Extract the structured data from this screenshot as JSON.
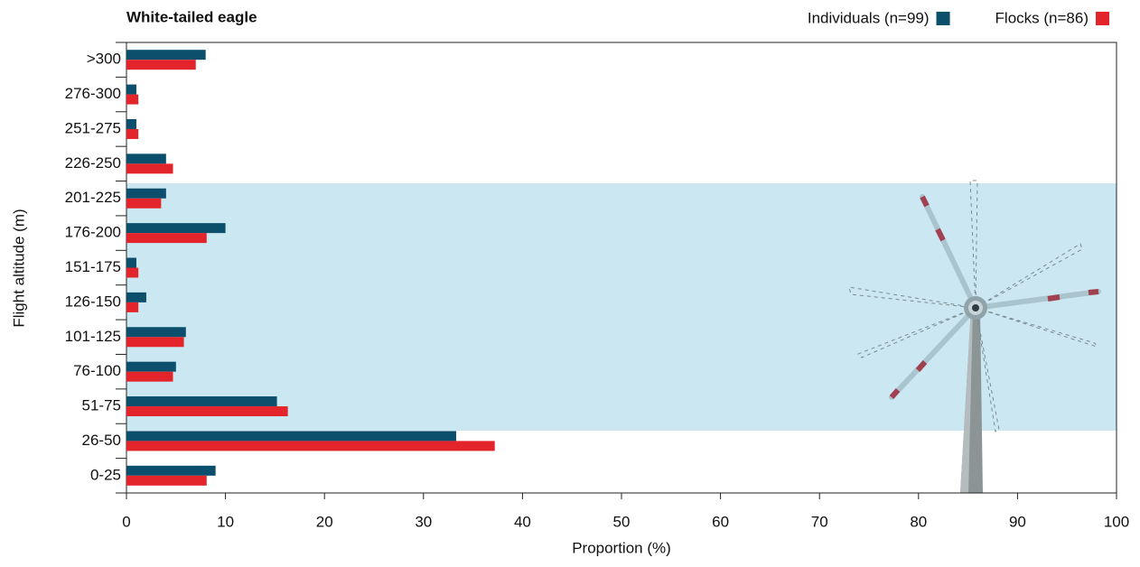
{
  "chart_data": {
    "type": "hbar",
    "title": "White-tailed eagle",
    "xlabel": "Proportion (%)",
    "ylabel": "Flight altitude (m)",
    "categories": [
      "0-25",
      "26-50",
      "51-75",
      "76-100",
      "101-125",
      "126-150",
      "151-175",
      "176-200",
      "201-225",
      "226-250",
      "251-275",
      "276-300",
      ">300"
    ],
    "series": [
      {
        "name": "Individuals (n=99)",
        "color": "#0b4f6c",
        "values": [
          9.0,
          33.3,
          15.2,
          5.0,
          6.0,
          2.0,
          1.0,
          10.0,
          4.0,
          4.0,
          1.0,
          1.0,
          8.0
        ]
      },
      {
        "name": "Flocks (n=86)",
        "color": "#e3242b",
        "values": [
          8.1,
          37.2,
          16.3,
          4.7,
          5.8,
          1.2,
          1.2,
          8.1,
          3.5,
          4.7,
          1.2,
          1.2,
          7.0
        ]
      }
    ],
    "xlim": [
      0,
      100
    ],
    "xticks": [
      0,
      10,
      20,
      30,
      40,
      50,
      60,
      70,
      80,
      90,
      100
    ],
    "grid": false,
    "legend": "top-right"
  }
}
